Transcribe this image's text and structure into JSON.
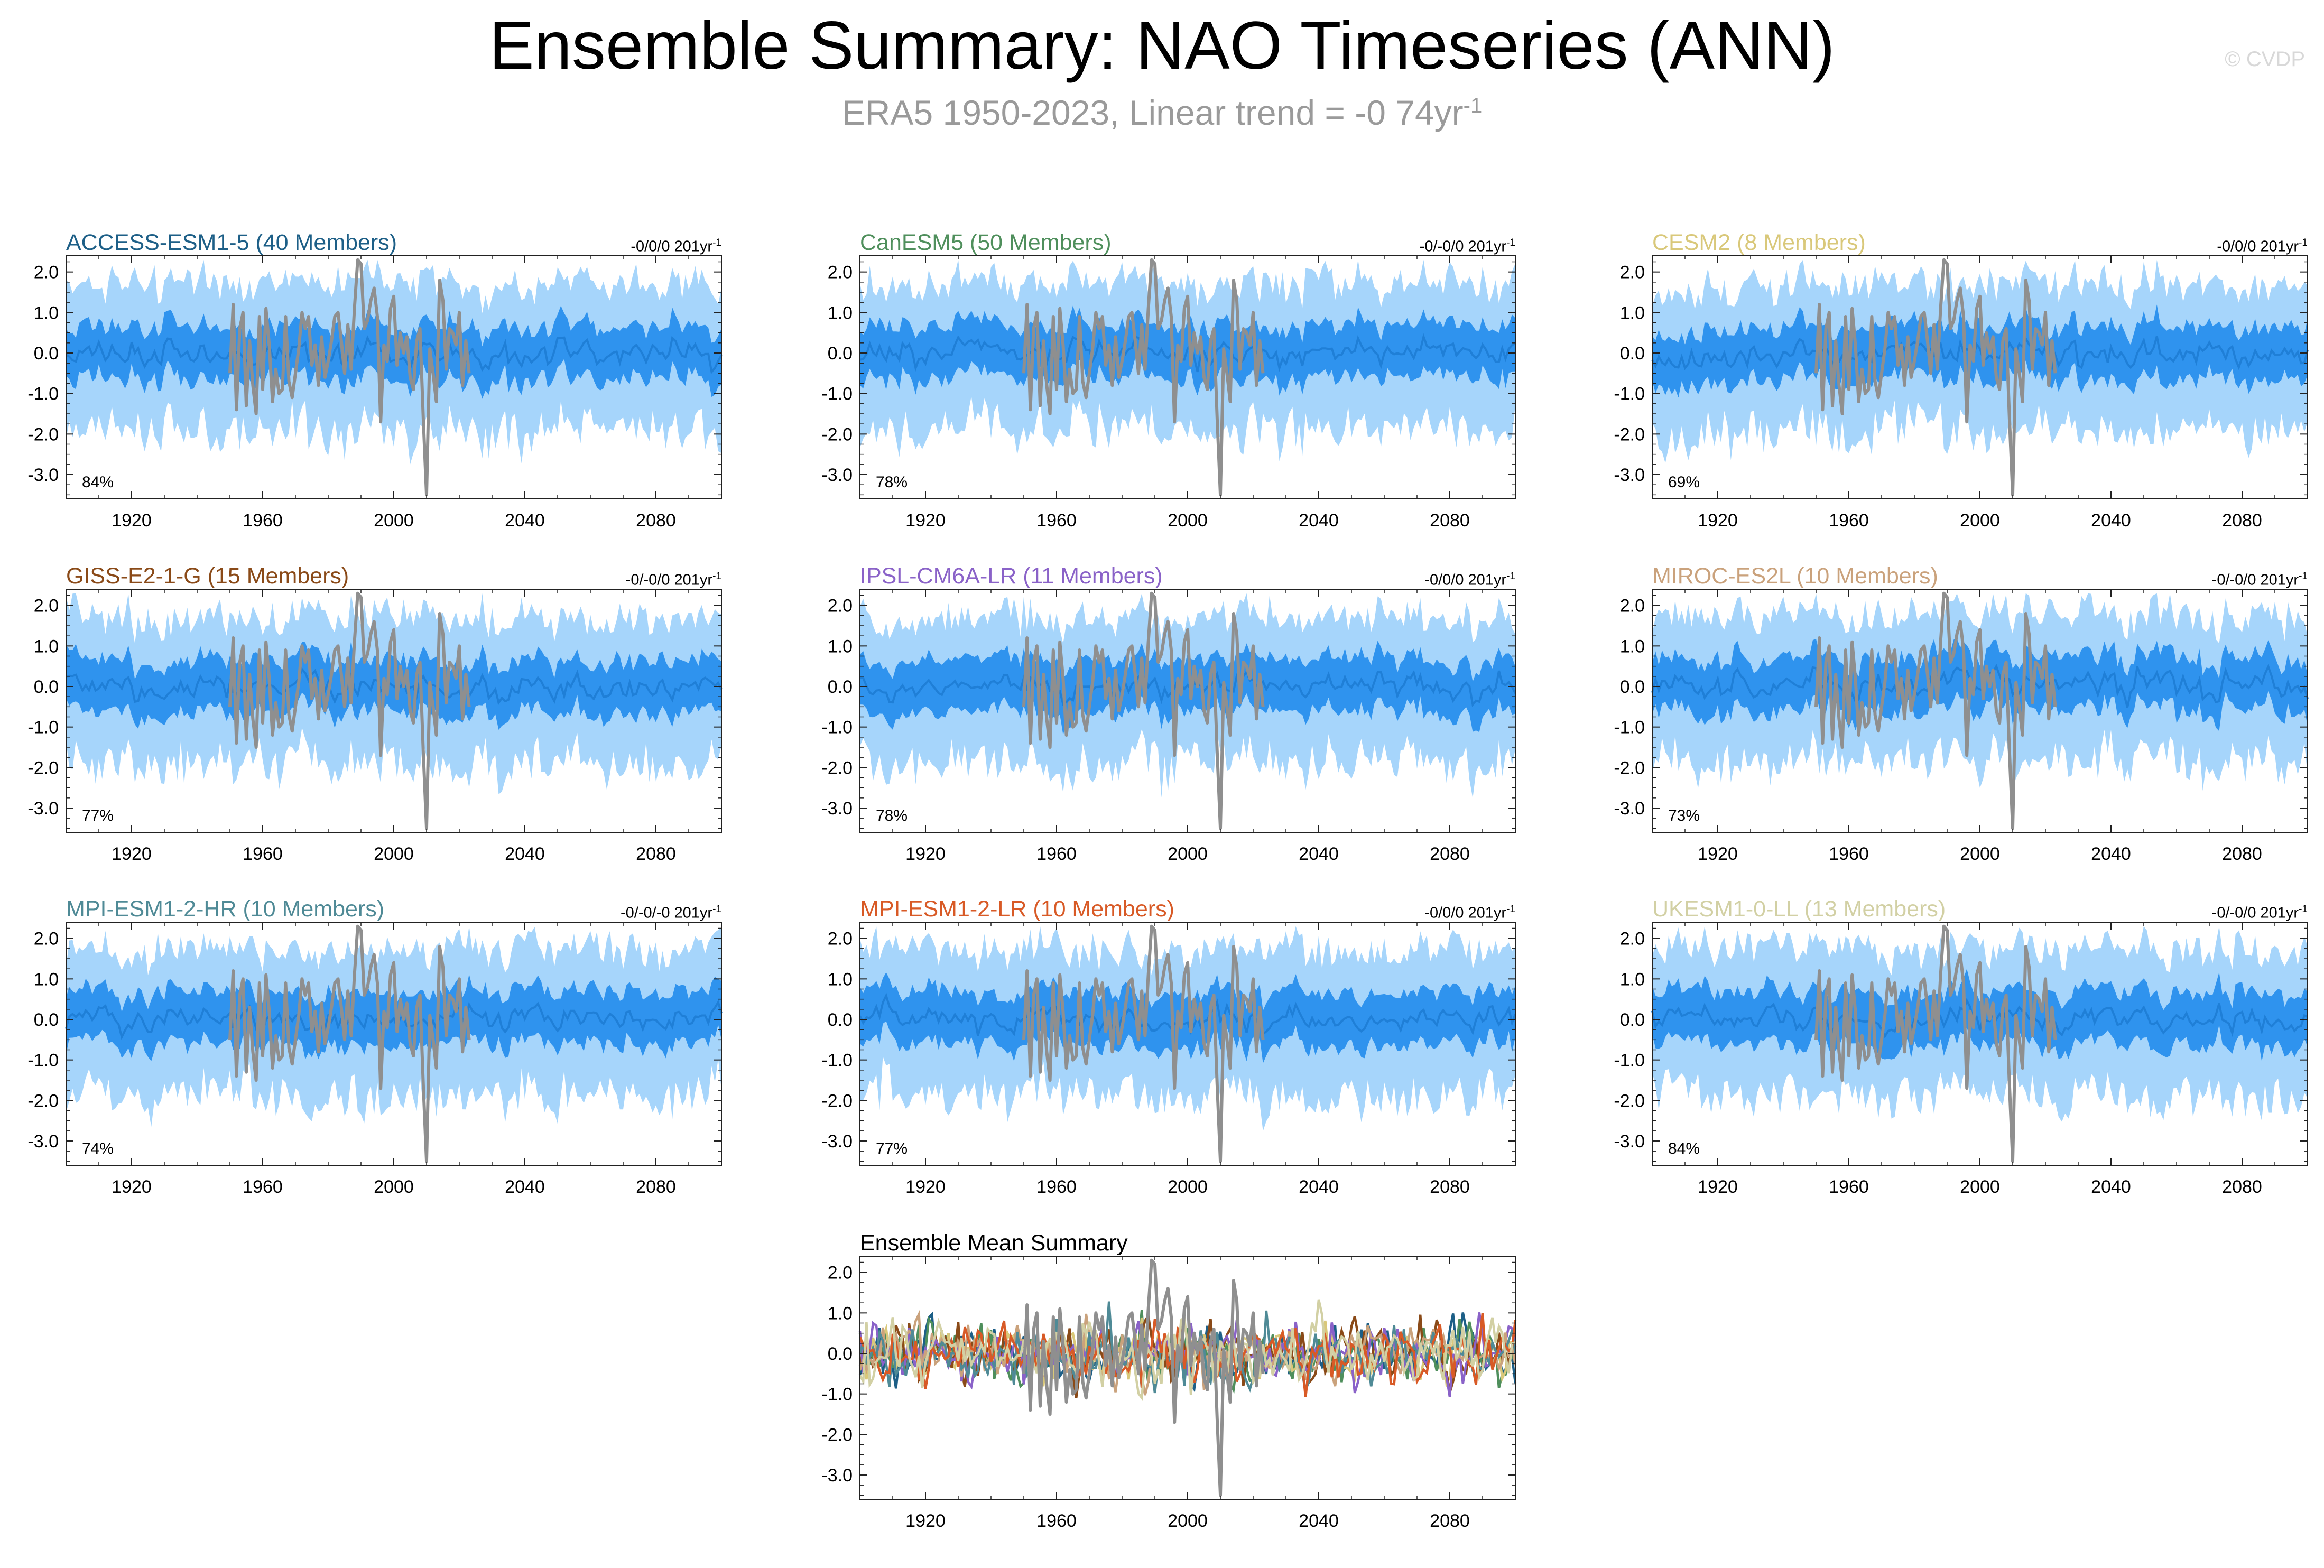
{
  "figure": {
    "title": "Ensemble Summary: NAO Timeseries (ANN)",
    "subtitle": "ERA5 1950-2023, Linear trend = -0 74yr",
    "subtitle_sup": "-1",
    "credit": "© CVDP"
  },
  "colors": {
    "spread_outer": "#a6d5fb",
    "spread_inner": "#2f93ee",
    "ensemble_mean": "#1f7fd7",
    "observations": "#8f8f8f",
    "frame": "#222222"
  },
  "chart_data": [
    {
      "type": "area",
      "panel": 1,
      "title": "ACCESS-ESM1-5 (40 Members)",
      "title_color": "#1d5f87",
      "trend": "-0/0/0 201yr",
      "trend_sup": "-1",
      "percent": "84%",
      "xlim": [
        1900,
        2100
      ],
      "ylim": [
        -3.6,
        2.4
      ],
      "xticks": [
        "1920",
        "1960",
        "2000",
        "2040",
        "2080"
      ],
      "yticks": [
        "2.0",
        "1.0",
        "0.0",
        "-1.0",
        "-2.0",
        "-3.0"
      ],
      "seed": 11
    },
    {
      "type": "area",
      "panel": 2,
      "title": "CanESM5 (50 Members)",
      "title_color": "#4f8f5c",
      "trend": "-0/-0/0 201yr",
      "trend_sup": "-1",
      "percent": "78%",
      "xlim": [
        1900,
        2100
      ],
      "ylim": [
        -3.6,
        2.4
      ],
      "xticks": [
        "1920",
        "1960",
        "2000",
        "2040",
        "2080"
      ],
      "yticks": [
        "2.0",
        "1.0",
        "0.0",
        "-1.0",
        "-2.0",
        "-3.0"
      ],
      "seed": 23
    },
    {
      "type": "area",
      "panel": 3,
      "title": "CESM2 (8 Members)",
      "title_color": "#d9c87a",
      "trend": "-0/0/0 201yr",
      "trend_sup": "-1",
      "percent": "69%",
      "xlim": [
        1900,
        2100
      ],
      "ylim": [
        -3.6,
        2.4
      ],
      "xticks": [
        "1920",
        "1960",
        "2000",
        "2040",
        "2080"
      ],
      "yticks": [
        "2.0",
        "1.0",
        "0.0",
        "-1.0",
        "-2.0",
        "-3.0"
      ],
      "seed": 37
    },
    {
      "type": "area",
      "panel": 4,
      "title": "GISS-E2-1-G (15 Members)",
      "title_color": "#8a4a18",
      "trend": "-0/-0/0 201yr",
      "trend_sup": "-1",
      "percent": "77%",
      "xlim": [
        1900,
        2100
      ],
      "ylim": [
        -3.6,
        2.4
      ],
      "xticks": [
        "1920",
        "1960",
        "2000",
        "2040",
        "2080"
      ],
      "yticks": [
        "2.0",
        "1.0",
        "0.0",
        "-1.0",
        "-2.0",
        "-3.0"
      ],
      "seed": 41
    },
    {
      "type": "area",
      "panel": 5,
      "title": "IPSL-CM6A-LR (11 Members)",
      "title_color": "#8a62c8",
      "trend": "-0/0/0 201yr",
      "trend_sup": "-1",
      "percent": "78%",
      "xlim": [
        1900,
        2100
      ],
      "ylim": [
        -3.6,
        2.4
      ],
      "xticks": [
        "1920",
        "1960",
        "2000",
        "2040",
        "2080"
      ],
      "yticks": [
        "2.0",
        "1.0",
        "0.0",
        "-1.0",
        "-2.0",
        "-3.0"
      ],
      "seed": 53
    },
    {
      "type": "area",
      "panel": 6,
      "title": "MIROC-ES2L (10 Members)",
      "title_color": "#caa27c",
      "trend": "-0/-0/0 201yr",
      "trend_sup": "-1",
      "percent": "73%",
      "xlim": [
        1900,
        2100
      ],
      "ylim": [
        -3.6,
        2.4
      ],
      "xticks": [
        "1920",
        "1960",
        "2000",
        "2040",
        "2080"
      ],
      "yticks": [
        "2.0",
        "1.0",
        "0.0",
        "-1.0",
        "-2.0",
        "-3.0"
      ],
      "seed": 67
    },
    {
      "type": "area",
      "panel": 7,
      "title": "MPI-ESM1-2-HR (10 Members)",
      "title_color": "#4f8a96",
      "trend": "-0/-0/-0 201yr",
      "trend_sup": "-1",
      "percent": "74%",
      "xlim": [
        1900,
        2100
      ],
      "ylim": [
        -3.6,
        2.4
      ],
      "xticks": [
        "1920",
        "1960",
        "2000",
        "2040",
        "2080"
      ],
      "yticks": [
        "2.0",
        "1.0",
        "0.0",
        "-1.0",
        "-2.0",
        "-3.0"
      ],
      "seed": 79
    },
    {
      "type": "area",
      "panel": 8,
      "title": "MPI-ESM1-2-LR (10 Members)",
      "title_color": "#d85a26",
      "trend": "-0/0/0 201yr",
      "trend_sup": "-1",
      "percent": "77%",
      "xlim": [
        1900,
        2100
      ],
      "ylim": [
        -3.6,
        2.4
      ],
      "xticks": [
        "1920",
        "1960",
        "2000",
        "2040",
        "2080"
      ],
      "yticks": [
        "2.0",
        "1.0",
        "0.0",
        "-1.0",
        "-2.0",
        "-3.0"
      ],
      "seed": 83
    },
    {
      "type": "area",
      "panel": 9,
      "title": "UKESM1-0-LL (13 Members)",
      "title_color": "#d2d0a4",
      "trend": "-0/-0/0 201yr",
      "trend_sup": "-1",
      "percent": "84%",
      "xlim": [
        1900,
        2100
      ],
      "ylim": [
        -3.6,
        2.4
      ],
      "xticks": [
        "1920",
        "1960",
        "2000",
        "2040",
        "2080"
      ],
      "yticks": [
        "2.0",
        "1.0",
        "0.0",
        "-1.0",
        "-2.0",
        "-3.0"
      ],
      "seed": 97
    },
    {
      "type": "line",
      "panel": 10,
      "title": "Ensemble Mean Summary",
      "title_color": "#000000",
      "trend": "",
      "trend_sup": "",
      "percent": "",
      "xlim": [
        1900,
        2100
      ],
      "ylim": [
        -3.6,
        2.4
      ],
      "xticks": [
        "1920",
        "1960",
        "2000",
        "2040",
        "2080"
      ],
      "yticks": [
        "2.0",
        "1.0",
        "0.0",
        "-1.0",
        "-2.0",
        "-3.0"
      ],
      "seed": 101,
      "series_colors": [
        "#1d5f87",
        "#4f8f5c",
        "#d9c87a",
        "#8a4a18",
        "#8a62c8",
        "#caa27c",
        "#4f8a96",
        "#d85a26",
        "#d2d0a4"
      ]
    }
  ],
  "observed_nao": {
    "years": [
      1950,
      1951,
      1952,
      1953,
      1954,
      1955,
      1956,
      1957,
      1958,
      1959,
      1960,
      1961,
      1962,
      1963,
      1964,
      1965,
      1966,
      1967,
      1968,
      1969,
      1970,
      1971,
      1972,
      1973,
      1974,
      1975,
      1976,
      1977,
      1978,
      1979,
      1980,
      1981,
      1982,
      1983,
      1984,
      1985,
      1986,
      1987,
      1988,
      1989,
      1990,
      1991,
      1992,
      1993,
      1994,
      1995,
      1996,
      1997,
      1998,
      1999,
      2000,
      2001,
      2002,
      2003,
      2004,
      2005,
      2006,
      2007,
      2008,
      2009,
      2010,
      2011,
      2012,
      2013,
      2014,
      2015,
      2016,
      2017,
      2018,
      2019,
      2020,
      2021,
      2022,
      2023
    ],
    "values": [
      -0.5,
      1.2,
      -1.4,
      0.6,
      1.0,
      -1.3,
      0.3,
      -0.8,
      -1.5,
      0.9,
      -0.9,
      1.1,
      0.2,
      -1.2,
      -0.4,
      -1.0,
      -0.9,
      0.9,
      -0.7,
      -1.1,
      -0.5,
      0.1,
      1.0,
      0.6,
      0.9,
      -0.3,
      0.2,
      -0.8,
      0.4,
      -0.6,
      -0.2,
      0.3,
      0.9,
      1.0,
      0.3,
      -0.5,
      0.7,
      -0.4,
      1.1,
      2.3,
      2.2,
      0.6,
      0.8,
      1.3,
      1.6,
      0.9,
      -1.7,
      0.2,
      -0.2,
      1.1,
      1.4,
      -0.3,
      0.5,
      0.0,
      0.4,
      -0.6,
      -0.9,
      0.3,
      0.6,
      -1.6,
      -3.5,
      0.1,
      -0.5,
      -1.2,
      1.8,
      1.3,
      -0.4,
      0.6,
      0.5,
      0.2,
      1.0,
      -0.8,
      0.3,
      -0.5
    ]
  }
}
